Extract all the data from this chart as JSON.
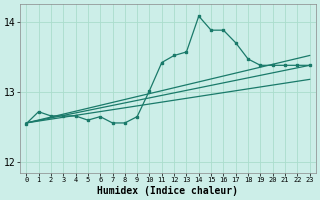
{
  "xlabel": "Humidex (Indice chaleur)",
  "background_color": "#cceee8",
  "grid_color": "#aaddcc",
  "line_color": "#1a7a6a",
  "xlim": [
    -0.5,
    23.5
  ],
  "ylim": [
    11.85,
    14.25
  ],
  "yticks": [
    12,
    13,
    14
  ],
  "xticks": [
    0,
    1,
    2,
    3,
    4,
    5,
    6,
    7,
    8,
    9,
    10,
    11,
    12,
    13,
    14,
    15,
    16,
    17,
    18,
    19,
    20,
    21,
    22,
    23
  ],
  "y_main": [
    12.55,
    12.72,
    12.66,
    12.66,
    12.66,
    12.6,
    12.65,
    12.56,
    12.56,
    12.65,
    13.02,
    13.42,
    13.52,
    13.57,
    14.08,
    13.88,
    13.88,
    13.7,
    13.47,
    13.38,
    13.38,
    13.38,
    13.38,
    13.38
  ],
  "trend1_y0": 12.56,
  "trend1_y1": 13.38,
  "trend2_y0": 12.56,
  "trend2_y1": 13.52,
  "trend3_y0": 12.56,
  "trend3_y1": 13.18
}
